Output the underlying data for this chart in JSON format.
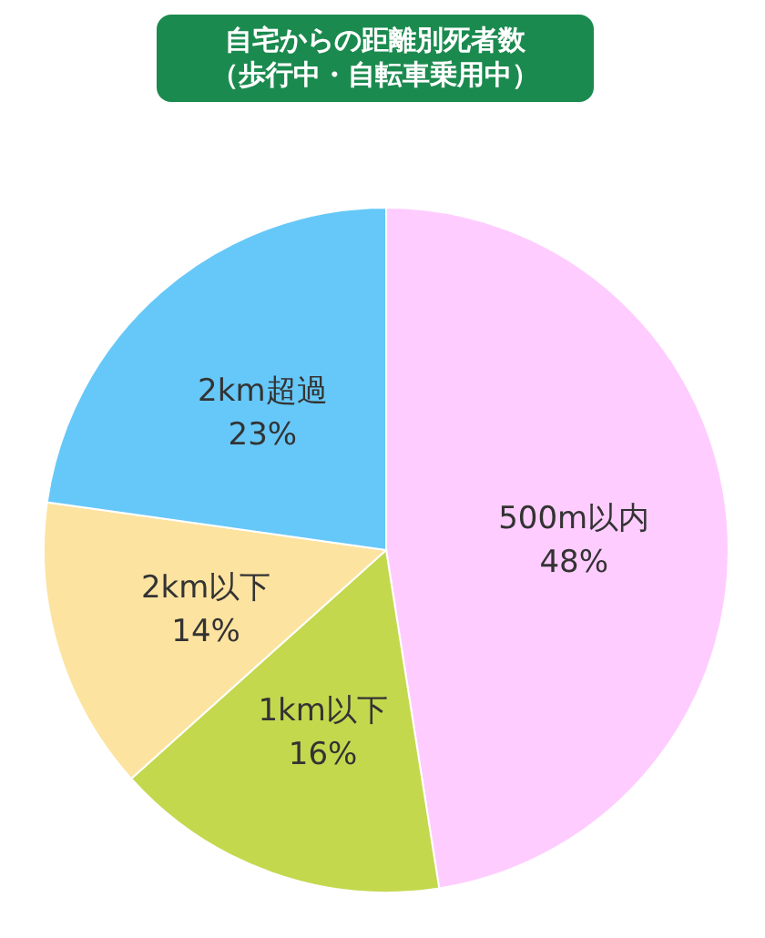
{
  "chart_data": {
    "type": "pie",
    "title": "自宅からの距離別死者数（歩行中・自転車乗用中）",
    "categories": [
      "500m以内",
      "1km以下",
      "2km以下",
      "2km超過"
    ],
    "values": [
      48,
      16,
      14,
      23
    ],
    "value_labels": [
      "48%",
      "16%",
      "14%",
      "23%"
    ],
    "colors": [
      "#ffccff",
      "#c4d84e",
      "#fde3a0",
      "#66c8f8"
    ]
  }
}
